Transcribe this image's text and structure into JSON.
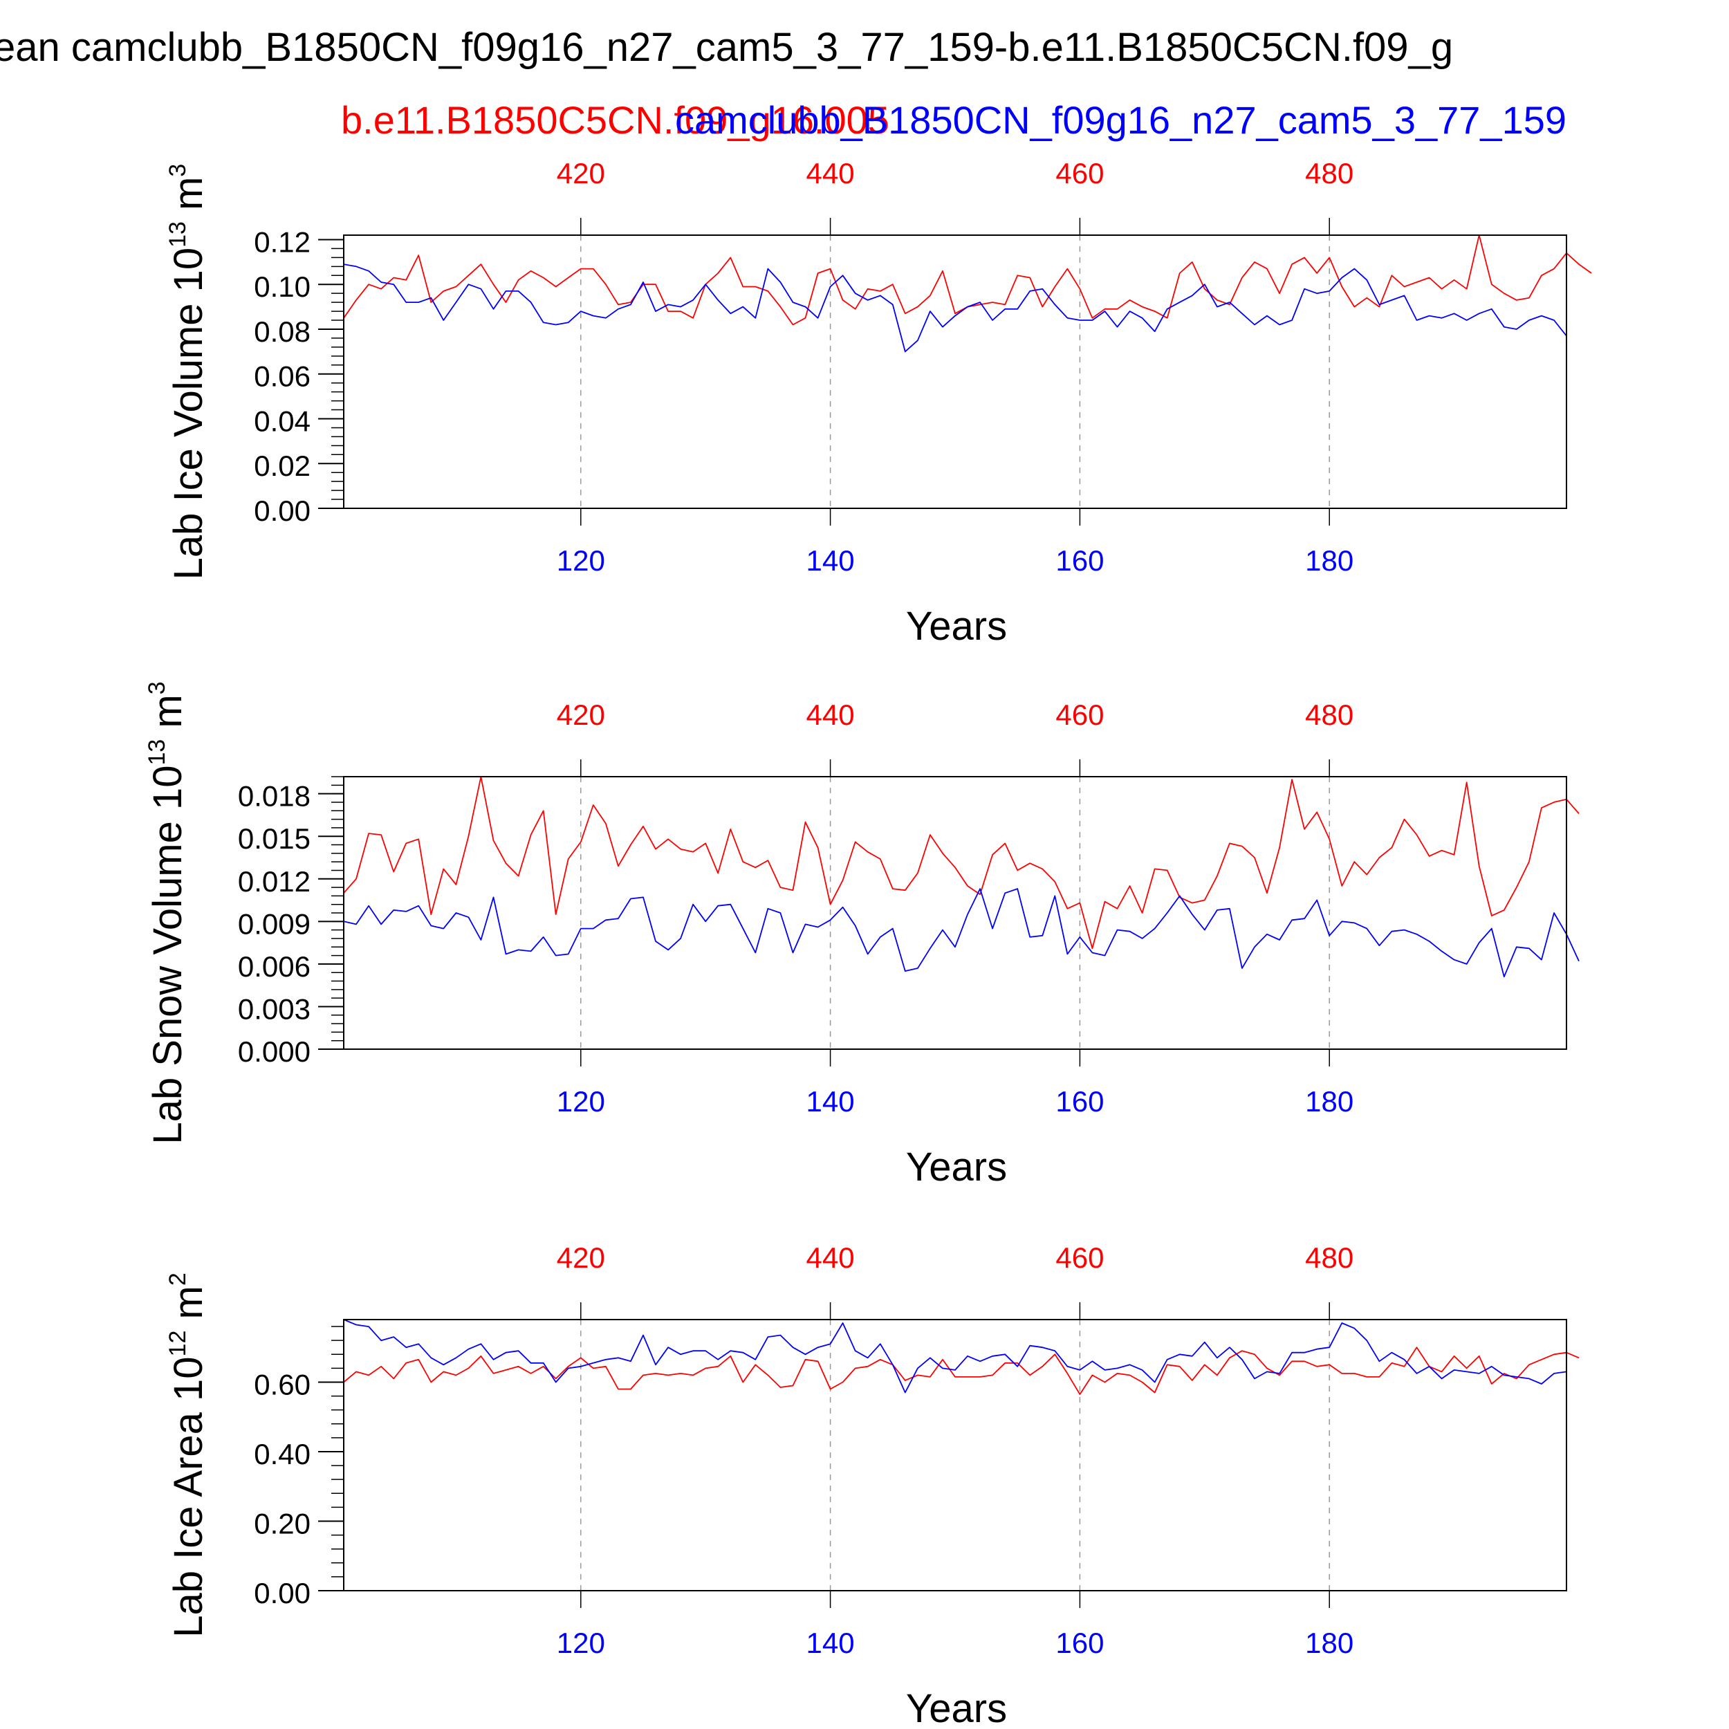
{
  "figure": {
    "title": "ean camclubb_B1850CN_f09g16_n27_cam5_3_77_159-b.e11.B1850C5CN.f09_g",
    "case_red": "b.e11.B1850C5CN.f09_g16.005",
    "case_blue": "camclubb_B1850CN_f09g16_n27_cam5_3_77_159"
  },
  "colors": {
    "red_series": "#ff0000",
    "blue_series": "#0000ff",
    "axes": "#000000",
    "grid": "#999999"
  },
  "chart_data": [
    {
      "type": "line",
      "ylabel": "Lab Ice Volume 10",
      "ylabel_exp": "13",
      "ylabel_unit": " m",
      "ylabel_unit_exp": "3",
      "xlabel": "Years",
      "ylim": [
        0.0,
        0.122
      ],
      "yticks": [
        "0.00",
        "0.02",
        "0.04",
        "0.06",
        "0.08",
        "0.10",
        "0.12"
      ],
      "ytick_values": [
        0.0,
        0.02,
        0.04,
        0.06,
        0.08,
        0.1,
        0.12
      ],
      "bottom_axis": {
        "range": [
          101,
          199
        ],
        "ticks": [
          120,
          140,
          160,
          180
        ],
        "color": "blue"
      },
      "top_axis": {
        "range": [
          401,
          499
        ],
        "ticks": [
          420,
          440,
          460,
          480
        ],
        "color": "red"
      },
      "grid": "vertical dashed at bottom ticks",
      "series": [
        {
          "name": "b.e11.B1850C5CN.f09_g16.005",
          "color": "red",
          "x_start": 401,
          "values": [
            0.085,
            0.093,
            0.1,
            0.098,
            0.103,
            0.102,
            0.113,
            0.092,
            0.097,
            0.099,
            0.104,
            0.109,
            0.1,
            0.092,
            0.102,
            0.106,
            0.103,
            0.099,
            0.103,
            0.107,
            0.107,
            0.1,
            0.091,
            0.092,
            0.1,
            0.1,
            0.088,
            0.088,
            0.085,
            0.1,
            0.105,
            0.112,
            0.099,
            0.099,
            0.097,
            0.09,
            0.082,
            0.085,
            0.105,
            0.107,
            0.093,
            0.089,
            0.098,
            0.097,
            0.1,
            0.087,
            0.09,
            0.095,
            0.106,
            0.087,
            0.09,
            0.091,
            0.092,
            0.091,
            0.104,
            0.103,
            0.09,
            0.099,
            0.107,
            0.098,
            0.085,
            0.089,
            0.089,
            0.093,
            0.09,
            0.088,
            0.085,
            0.105,
            0.11,
            0.098,
            0.093,
            0.091,
            0.103,
            0.11,
            0.107,
            0.096,
            0.109,
            0.112,
            0.105,
            0.112,
            0.099,
            0.09,
            0.094,
            0.09,
            0.104,
            0.099,
            0.101,
            0.103,
            0.098,
            0.102,
            0.098,
            0.122,
            0.1,
            0.096,
            0.093,
            0.094,
            0.104,
            0.107,
            0.114,
            0.109,
            0.105
          ]
        },
        {
          "name": "camclubb_B1850CN_f09g16_n27_cam5_3_77_159",
          "color": "blue",
          "x_start": 101,
          "values": [
            0.109,
            0.108,
            0.106,
            0.101,
            0.1,
            0.092,
            0.092,
            0.094,
            0.084,
            0.092,
            0.1,
            0.098,
            0.089,
            0.097,
            0.097,
            0.092,
            0.083,
            0.082,
            0.083,
            0.088,
            0.086,
            0.085,
            0.089,
            0.091,
            0.101,
            0.088,
            0.091,
            0.09,
            0.093,
            0.1,
            0.093,
            0.087,
            0.09,
            0.085,
            0.107,
            0.101,
            0.092,
            0.09,
            0.085,
            0.099,
            0.104,
            0.096,
            0.093,
            0.095,
            0.091,
            0.07,
            0.075,
            0.088,
            0.081,
            0.086,
            0.09,
            0.092,
            0.084,
            0.089,
            0.089,
            0.097,
            0.098,
            0.091,
            0.085,
            0.084,
            0.084,
            0.088,
            0.081,
            0.088,
            0.085,
            0.079,
            0.089,
            0.092,
            0.095,
            0.1,
            0.09,
            0.092,
            0.087,
            0.082,
            0.086,
            0.082,
            0.084,
            0.098,
            0.096,
            0.097,
            0.103,
            0.107,
            0.102,
            0.091,
            0.093,
            0.095,
            0.084,
            0.086,
            0.085,
            0.087,
            0.084,
            0.087,
            0.089,
            0.081,
            0.08,
            0.084,
            0.086,
            0.084,
            0.077
          ]
        }
      ]
    },
    {
      "type": "line",
      "ylabel": "Lab Snow Volume 10",
      "ylabel_exp": "13",
      "ylabel_unit": " m",
      "ylabel_unit_exp": "3",
      "xlabel": "Years",
      "ylim": [
        0.0,
        0.0192
      ],
      "yticks": [
        "0.000",
        "0.003",
        "0.006",
        "0.009",
        "0.012",
        "0.015",
        "0.018"
      ],
      "ytick_values": [
        0.0,
        0.003,
        0.006,
        0.009,
        0.012,
        0.015,
        0.018
      ],
      "bottom_axis": {
        "range": [
          101,
          199
        ],
        "ticks": [
          120,
          140,
          160,
          180
        ],
        "color": "blue"
      },
      "top_axis": {
        "range": [
          401,
          499
        ],
        "ticks": [
          420,
          440,
          460,
          480
        ],
        "color": "red"
      },
      "grid": "vertical dashed at bottom ticks",
      "series": [
        {
          "name": "b.e11.B1850C5CN.f09_g16.005",
          "color": "red",
          "x_start": 401,
          "values": [
            0.011,
            0.012,
            0.0152,
            0.0151,
            0.0125,
            0.0145,
            0.0148,
            0.0095,
            0.0127,
            0.0116,
            0.015,
            0.0192,
            0.0147,
            0.0131,
            0.0122,
            0.0151,
            0.0168,
            0.0095,
            0.0134,
            0.0146,
            0.0172,
            0.0159,
            0.0129,
            0.0144,
            0.0157,
            0.0141,
            0.0148,
            0.0141,
            0.0139,
            0.0145,
            0.0124,
            0.0155,
            0.0132,
            0.0128,
            0.0133,
            0.0114,
            0.0112,
            0.016,
            0.0142,
            0.0102,
            0.0119,
            0.0146,
            0.0139,
            0.0134,
            0.0113,
            0.0112,
            0.0124,
            0.0151,
            0.0138,
            0.0128,
            0.0115,
            0.0109,
            0.0137,
            0.0145,
            0.0126,
            0.0131,
            0.0127,
            0.0118,
            0.0099,
            0.0103,
            0.0071,
            0.0104,
            0.0099,
            0.0115,
            0.0096,
            0.0127,
            0.0126,
            0.0107,
            0.0103,
            0.0105,
            0.0122,
            0.0145,
            0.0143,
            0.0135,
            0.011,
            0.0142,
            0.019,
            0.0155,
            0.0167,
            0.0148,
            0.0115,
            0.0132,
            0.0123,
            0.0135,
            0.0142,
            0.0162,
            0.0151,
            0.0136,
            0.014,
            0.0137,
            0.0188,
            0.0129,
            0.0094,
            0.0098,
            0.0114,
            0.0132,
            0.017,
            0.0174,
            0.0176,
            0.0166
          ]
        },
        {
          "name": "camclubb_B1850CN_f09g16_n27_cam5_3_77_159",
          "color": "blue",
          "x_start": 101,
          "values": [
            0.009,
            0.0088,
            0.0101,
            0.0088,
            0.0098,
            0.0097,
            0.0101,
            0.0087,
            0.0085,
            0.0096,
            0.0093,
            0.0077,
            0.0107,
            0.0067,
            0.007,
            0.0069,
            0.0079,
            0.0066,
            0.0067,
            0.0085,
            0.0085,
            0.0091,
            0.0092,
            0.0106,
            0.0107,
            0.0076,
            0.007,
            0.0078,
            0.0102,
            0.009,
            0.0101,
            0.0102,
            0.0085,
            0.0068,
            0.0099,
            0.0096,
            0.0068,
            0.0088,
            0.0086,
            0.0091,
            0.01,
            0.0087,
            0.0067,
            0.0079,
            0.0085,
            0.0055,
            0.0057,
            0.0071,
            0.0084,
            0.0072,
            0.0095,
            0.0113,
            0.0085,
            0.011,
            0.0113,
            0.0079,
            0.008,
            0.0108,
            0.0067,
            0.0079,
            0.0068,
            0.0066,
            0.0084,
            0.0083,
            0.0078,
            0.0085,
            0.0096,
            0.0108,
            0.0095,
            0.0084,
            0.0098,
            0.0099,
            0.0057,
            0.0072,
            0.0081,
            0.0077,
            0.0091,
            0.0092,
            0.0105,
            0.008,
            0.009,
            0.0089,
            0.0085,
            0.0073,
            0.0083,
            0.0084,
            0.0081,
            0.0076,
            0.0069,
            0.0063,
            0.006,
            0.0075,
            0.0085,
            0.0051,
            0.0072,
            0.0071,
            0.0063,
            0.0096,
            0.0081,
            0.0062
          ]
        }
      ]
    },
    {
      "type": "line",
      "ylabel": "Lab Ice Area 10",
      "ylabel_exp": "12",
      "ylabel_unit": " m",
      "ylabel_unit_exp": "2",
      "xlabel": "Years",
      "ylim": [
        0.0,
        0.78
      ],
      "yticks": [
        "0.00",
        "0.20",
        "0.40",
        "0.60"
      ],
      "ytick_values": [
        0.0,
        0.2,
        0.4,
        0.6
      ],
      "bottom_axis": {
        "range": [
          101,
          199
        ],
        "ticks": [
          120,
          140,
          160,
          180
        ],
        "color": "blue"
      },
      "top_axis": {
        "range": [
          401,
          499
        ],
        "ticks": [
          420,
          440,
          460,
          480
        ],
        "color": "red"
      },
      "grid": "vertical dashed at bottom ticks",
      "series": [
        {
          "name": "b.e11.B1850C5CN.f09_g16.005",
          "color": "red",
          "x_start": 401,
          "values": [
            0.6,
            0.63,
            0.62,
            0.645,
            0.61,
            0.655,
            0.665,
            0.6,
            0.63,
            0.62,
            0.64,
            0.675,
            0.625,
            0.635,
            0.645,
            0.625,
            0.645,
            0.61,
            0.645,
            0.67,
            0.64,
            0.645,
            0.58,
            0.58,
            0.62,
            0.625,
            0.62,
            0.625,
            0.62,
            0.64,
            0.645,
            0.675,
            0.6,
            0.65,
            0.62,
            0.585,
            0.59,
            0.665,
            0.66,
            0.58,
            0.6,
            0.64,
            0.645,
            0.665,
            0.65,
            0.605,
            0.62,
            0.615,
            0.665,
            0.615,
            0.615,
            0.615,
            0.62,
            0.655,
            0.655,
            0.62,
            0.645,
            0.68,
            0.625,
            0.565,
            0.62,
            0.6,
            0.625,
            0.62,
            0.6,
            0.57,
            0.65,
            0.645,
            0.605,
            0.65,
            0.62,
            0.67,
            0.69,
            0.68,
            0.64,
            0.62,
            0.66,
            0.66,
            0.645,
            0.65,
            0.625,
            0.625,
            0.615,
            0.615,
            0.655,
            0.645,
            0.7,
            0.645,
            0.63,
            0.675,
            0.64,
            0.675,
            0.595,
            0.625,
            0.61,
            0.65,
            0.665,
            0.68,
            0.685,
            0.67
          ]
        },
        {
          "name": "camclubb_B1850CN_f09g16_n27_cam5_3_77_159",
          "color": "blue",
          "x_start": 101,
          "values": [
            0.78,
            0.765,
            0.76,
            0.72,
            0.73,
            0.7,
            0.71,
            0.67,
            0.65,
            0.67,
            0.695,
            0.71,
            0.665,
            0.685,
            0.69,
            0.655,
            0.655,
            0.6,
            0.64,
            0.645,
            0.655,
            0.665,
            0.67,
            0.66,
            0.735,
            0.65,
            0.7,
            0.68,
            0.69,
            0.69,
            0.665,
            0.69,
            0.685,
            0.665,
            0.73,
            0.735,
            0.7,
            0.68,
            0.7,
            0.71,
            0.77,
            0.69,
            0.67,
            0.71,
            0.65,
            0.57,
            0.64,
            0.67,
            0.64,
            0.635,
            0.675,
            0.66,
            0.675,
            0.68,
            0.645,
            0.705,
            0.7,
            0.69,
            0.645,
            0.635,
            0.66,
            0.635,
            0.64,
            0.65,
            0.635,
            0.6,
            0.665,
            0.68,
            0.675,
            0.715,
            0.67,
            0.7,
            0.665,
            0.61,
            0.63,
            0.625,
            0.685,
            0.685,
            0.695,
            0.7,
            0.77,
            0.755,
            0.72,
            0.66,
            0.685,
            0.665,
            0.625,
            0.645,
            0.61,
            0.635,
            0.63,
            0.625,
            0.645,
            0.62,
            0.615,
            0.61,
            0.595,
            0.625,
            0.63
          ]
        }
      ]
    }
  ]
}
